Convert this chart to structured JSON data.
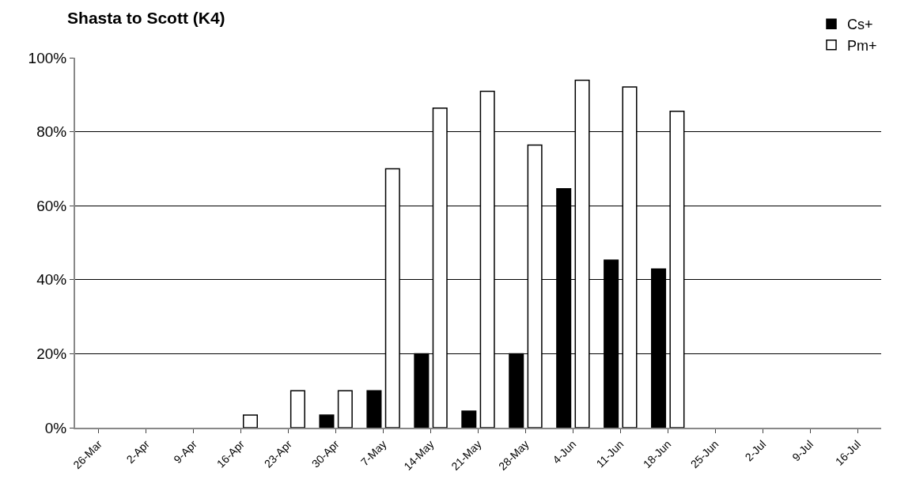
{
  "chart_data": {
    "type": "bar",
    "title": "Shasta to Scott (K4)",
    "categories": [
      "26-Mar",
      "2-Apr",
      "9-Apr",
      "16-Apr",
      "23-Apr",
      "30-Apr",
      "7-May",
      "14-May",
      "21-May",
      "28-May",
      "4-Jun",
      "11-Jun",
      "18-Jun",
      "25-Jun",
      "2-Jul",
      "9-Jul",
      "16-Jul"
    ],
    "series": [
      {
        "name": "Cs+",
        "color": "#000000",
        "values": [
          null,
          null,
          null,
          null,
          null,
          3.4,
          10,
          20,
          4.5,
          20,
          64.6,
          45.3,
          42.9,
          null,
          null,
          null,
          null
        ]
      },
      {
        "name": "Pm+",
        "color": "#ffffff",
        "values": [
          null,
          null,
          null,
          3.4,
          10,
          10,
          70,
          86.4,
          90.9,
          76.4,
          93.9,
          92.1,
          85.5,
          null,
          null,
          null,
          null
        ]
      }
    ],
    "ylim": [
      0,
      100
    ],
    "yticks": [
      {
        "value": 0,
        "label": "0%"
      },
      {
        "value": 20,
        "label": "20%"
      },
      {
        "value": 40,
        "label": "40%"
      },
      {
        "value": 60,
        "label": "60%"
      },
      {
        "value": 80,
        "label": "80%"
      },
      {
        "value": 100,
        "label": "100%"
      }
    ],
    "grid": "y",
    "legend": "top right"
  }
}
